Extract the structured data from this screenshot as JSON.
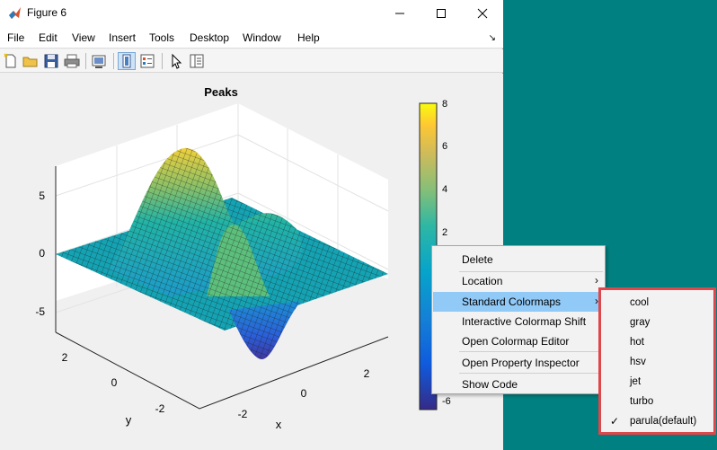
{
  "window": {
    "title": "Figure 6"
  },
  "menubar": [
    "File",
    "Edit",
    "View",
    "Insert",
    "Tools",
    "Desktop",
    "Window",
    "Help"
  ],
  "plot": {
    "title": "Peaks",
    "z_ticks": [
      "5",
      "0",
      "-5"
    ],
    "y_ticks": [
      "2",
      "0",
      "-2"
    ],
    "x_ticks": [
      "-2",
      "0",
      "2"
    ],
    "xlabel": "x",
    "ylabel": "y"
  },
  "colorbar": {
    "ticks": [
      "8",
      "6",
      "4",
      "2",
      "-6"
    ],
    "colormap": "parula"
  },
  "context_menu": {
    "items": [
      {
        "label": "Delete"
      },
      {
        "label": "Location",
        "submenu": true
      },
      {
        "label": "Standard Colormaps",
        "submenu": true,
        "highlighted": true
      },
      {
        "label": "Interactive Colormap Shift"
      },
      {
        "label": "Open Colormap Editor"
      },
      {
        "label": "Open Property Inspector"
      },
      {
        "label": "Show Code"
      }
    ]
  },
  "colormap_submenu": {
    "items": [
      {
        "label": "cool"
      },
      {
        "label": "gray"
      },
      {
        "label": "hot"
      },
      {
        "label": "hsv"
      },
      {
        "label": "jet"
      },
      {
        "label": "turbo"
      },
      {
        "label": "parula(default)",
        "checked": true
      }
    ]
  },
  "colors": {
    "desktop": "#008080",
    "highlight": "#91c9f7",
    "annotation": "#e0474b"
  }
}
